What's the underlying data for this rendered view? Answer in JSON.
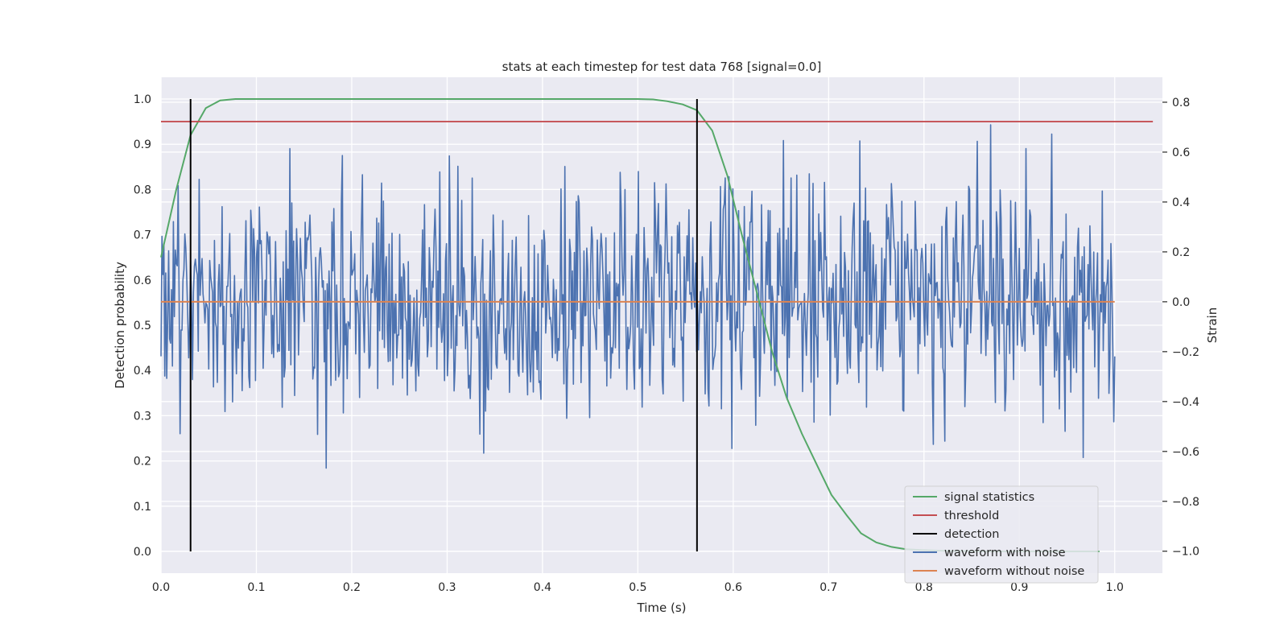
{
  "chart_data": {
    "type": "line",
    "title": "stats at each timestep for test data 768 [signal=0.0]",
    "xlabel": "Time (s)",
    "ylabel": "Detection probability",
    "y2label": "Strain",
    "xlim": [
      0.0,
      1.05
    ],
    "ylim": [
      -0.048,
      1.048
    ],
    "y2lim": [
      -1.088,
      0.9
    ],
    "xticks": [
      "0.0",
      "0.1",
      "0.2",
      "0.3",
      "0.4",
      "0.5",
      "0.6",
      "0.7",
      "0.8",
      "0.9",
      "1.0"
    ],
    "yticks": [
      "0.0",
      "0.1",
      "0.2",
      "0.3",
      "0.4",
      "0.5",
      "0.6",
      "0.7",
      "0.8",
      "0.9",
      "1.0"
    ],
    "y2ticks": [
      "−1.0",
      "−0.8",
      "−0.6",
      "−0.4",
      "−0.2",
      "0.0",
      "0.2",
      "0.4",
      "0.6",
      "0.8"
    ],
    "grid": true,
    "legend_position": "lower-right",
    "colors": {
      "signal": "#55a868",
      "threshold": "#c44e52",
      "detection": "#000000",
      "noisy": "#4c72b0",
      "clean": "#dd8452",
      "background": "#eaeaf2",
      "grid": "#ffffff"
    },
    "signal_statistics": {
      "name": "signal statistics",
      "x": [
        0.0,
        0.016,
        0.031,
        0.047,
        0.062,
        0.078,
        0.094,
        0.2,
        0.3,
        0.4,
        0.45,
        0.5,
        0.516,
        0.531,
        0.547,
        0.562,
        0.578,
        0.594,
        0.609,
        0.625,
        0.641,
        0.656,
        0.672,
        0.688,
        0.703,
        0.719,
        0.734,
        0.75,
        0.766,
        0.781,
        0.797,
        0.812,
        0.828,
        0.844,
        0.859,
        0.875,
        0.891,
        0.906,
        0.922,
        0.938,
        0.953,
        0.969,
        0.984
      ],
      "y": [
        0.65,
        0.8,
        0.92,
        0.98,
        0.997,
        1.0,
        1.0,
        1.0,
        1.0,
        1.0,
        1.0,
        1.0,
        0.999,
        0.995,
        0.988,
        0.975,
        0.93,
        0.83,
        0.7,
        0.57,
        0.44,
        0.34,
        0.26,
        0.19,
        0.125,
        0.08,
        0.04,
        0.02,
        0.01,
        0.005,
        0.003,
        0.002,
        0.001,
        0.001,
        0.0,
        0.0,
        0.0,
        0.0,
        0.0,
        0.0,
        0.0,
        0.0,
        0.0
      ]
    },
    "threshold": {
      "name": "threshold",
      "value": 0.95,
      "x": [
        0.0,
        1.04
      ]
    },
    "detection": {
      "name": "detection",
      "x": [
        0.031,
        0.562
      ],
      "y": [
        0.0,
        1.0
      ]
    },
    "waveform_with_noise": {
      "name": "waveform with noise",
      "x_range": [
        0.0,
        1.0
      ],
      "n_points": 1000,
      "std": 0.24,
      "y_range": [
        -1.0,
        0.8
      ]
    },
    "waveform_without_noise": {
      "name": "waveform without noise",
      "x": [
        0.0,
        1.0
      ],
      "y": [
        0.0,
        0.0
      ]
    },
    "legend": [
      "signal statistics",
      "threshold",
      "detection",
      "waveform with noise",
      "waveform without noise"
    ]
  }
}
